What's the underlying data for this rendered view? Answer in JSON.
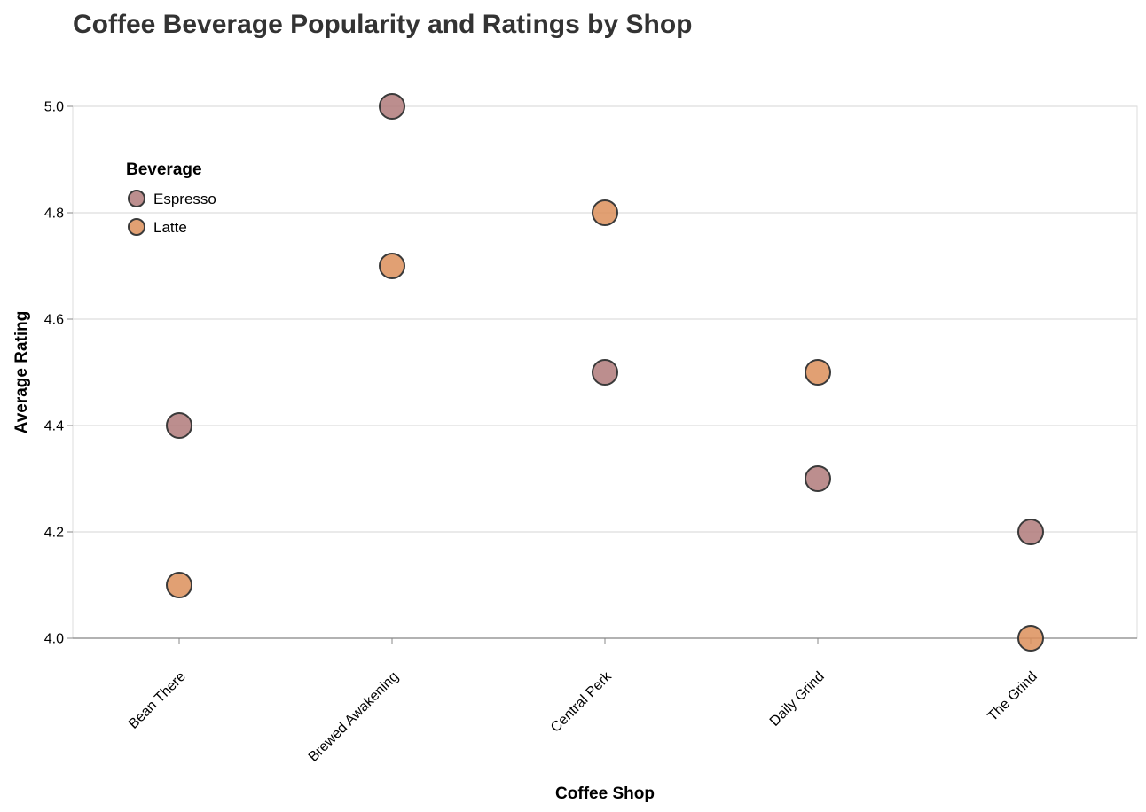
{
  "chart_data": {
    "type": "scatter",
    "title": "Coffee Beverage Popularity and Ratings by Shop",
    "xlabel": "Coffee Shop",
    "ylabel": "Average Rating",
    "categories": [
      "Bean There",
      "Brewed Awakening",
      "Central Perk",
      "Daily Grind",
      "The Grind"
    ],
    "ylim": [
      4.0,
      5.0
    ],
    "yticks": [
      "4.0",
      "4.2",
      "4.4",
      "4.6",
      "4.8",
      "5.0"
    ],
    "grid": true,
    "legend": {
      "title": "Beverage",
      "placement": "top-left"
    },
    "series": [
      {
        "name": "Espresso",
        "color": "#b07a7a",
        "values": [
          4.4,
          5.0,
          4.5,
          4.3,
          4.2
        ]
      },
      {
        "name": "Latte",
        "color": "#dc8f5a",
        "values": [
          4.1,
          4.7,
          4.8,
          4.5,
          4.0
        ]
      }
    ]
  }
}
